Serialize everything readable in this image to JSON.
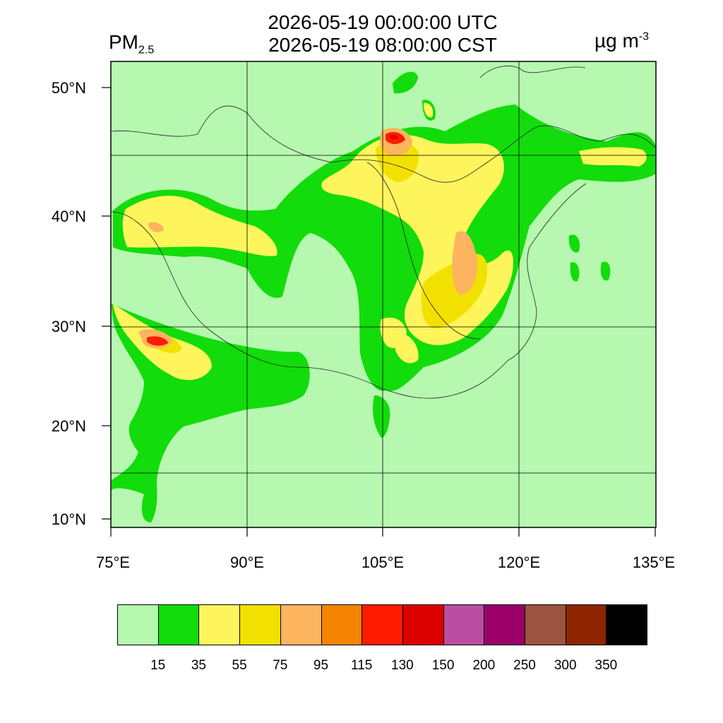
{
  "header": {
    "variable": "PM",
    "variable_sub": "2.5",
    "time_utc": "2026-05-19 00:00:00 UTC",
    "time_cst": "2026-05-19 08:00:00 CST",
    "units": "µg m",
    "units_sup": "-3"
  },
  "map": {
    "lat_labels": [
      "50°N",
      "40°N",
      "30°N",
      "20°N",
      "10°N"
    ],
    "lon_labels": [
      "75°E",
      "90°E",
      "105°E",
      "120°E",
      "135°E"
    ],
    "background_color": "#b6f8b0"
  },
  "colorbar": {
    "levels": [
      "15",
      "35",
      "55",
      "75",
      "95",
      "115",
      "130",
      "150",
      "200",
      "250",
      "300",
      "350"
    ],
    "colors": [
      "#b6f8b0",
      "#12dc0b",
      "#fef55c",
      "#f2e100",
      "#fdb45f",
      "#f48400",
      "#fe1c00",
      "#dc0000",
      "#ba4d9f",
      "#9a0068",
      "#9c533f",
      "#8c2500",
      "#000000"
    ]
  }
}
